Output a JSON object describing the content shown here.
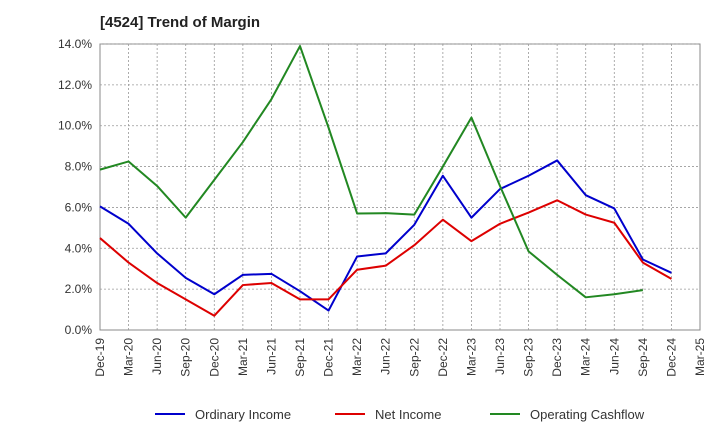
{
  "chart_data": {
    "type": "line",
    "title": "[4524]  Trend of Margin",
    "xlabel": "",
    "ylabel": "",
    "categories": [
      "Dec-19",
      "Mar-20",
      "Jun-20",
      "Sep-20",
      "Dec-20",
      "Mar-21",
      "Jun-21",
      "Sep-21",
      "Dec-21",
      "Mar-22",
      "Jun-22",
      "Sep-22",
      "Dec-22",
      "Mar-23",
      "Jun-23",
      "Sep-23",
      "Dec-23",
      "Mar-24",
      "Jun-24",
      "Sep-24",
      "Dec-24",
      "Mar-25"
    ],
    "ylim": [
      0,
      14
    ],
    "yticks": [
      0,
      2,
      4,
      6,
      8,
      10,
      12,
      14
    ],
    "ytick_labels": [
      "0.0%",
      "2.0%",
      "4.0%",
      "6.0%",
      "8.0%",
      "10.0%",
      "12.0%",
      "14.0%"
    ],
    "grid": true,
    "legend_position": "bottom",
    "series": [
      {
        "name": "Ordinary Income",
        "color": "#0000cc",
        "values": [
          6.05,
          5.2,
          3.75,
          2.55,
          1.75,
          2.7,
          2.75,
          1.9,
          0.95,
          3.6,
          3.75,
          5.15,
          7.55,
          5.5,
          6.9,
          7.55,
          8.3,
          6.6,
          5.95,
          3.45,
          2.8,
          null
        ]
      },
      {
        "name": "Net Income",
        "color": "#dd0000",
        "values": [
          4.5,
          3.3,
          2.3,
          1.5,
          0.7,
          2.2,
          2.3,
          1.5,
          1.5,
          2.95,
          3.15,
          4.15,
          5.4,
          4.35,
          5.2,
          5.75,
          6.35,
          5.65,
          5.25,
          3.3,
          2.5,
          null
        ]
      },
      {
        "name": "Operating Cashflow",
        "color": "#228822",
        "values": [
          7.85,
          8.25,
          7.05,
          5.5,
          7.35,
          9.2,
          11.3,
          13.9,
          9.9,
          5.7,
          5.72,
          5.65,
          8.0,
          10.4,
          7.05,
          3.85,
          2.7,
          1.6,
          1.75,
          1.95,
          null,
          null
        ]
      }
    ]
  }
}
